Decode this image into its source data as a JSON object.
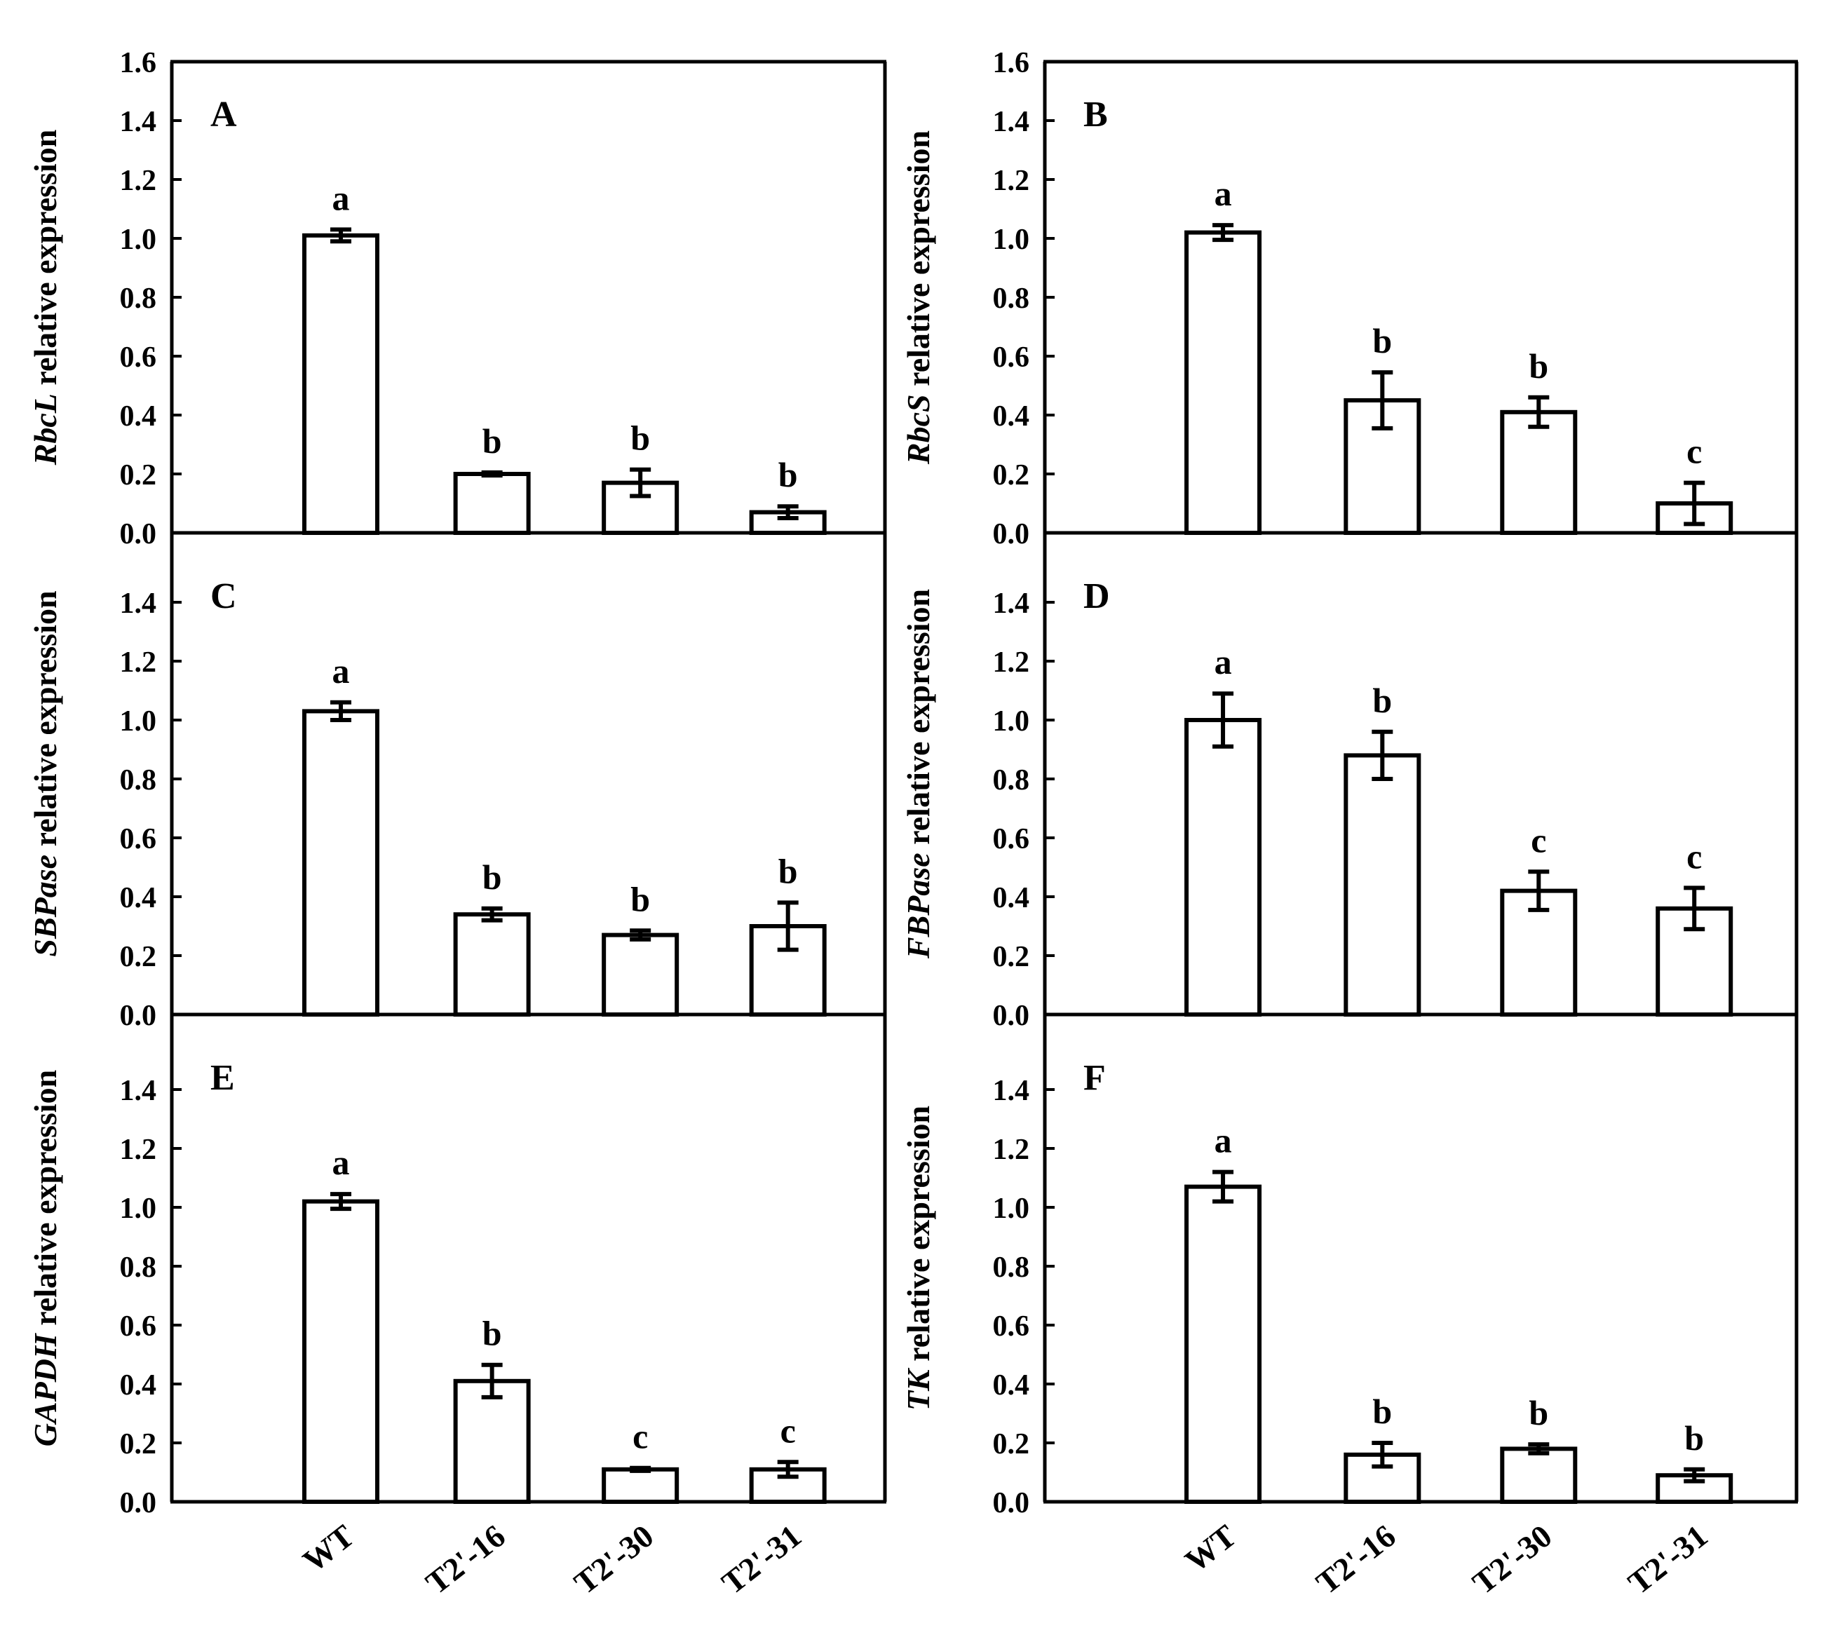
{
  "chart_data": [
    {
      "type": "bar",
      "panel": "A",
      "gene": "RbcL",
      "ylabel_suffix": " relative expression",
      "categories": [
        "WT",
        "T2'-16",
        "T2'-30",
        "T2'-31"
      ],
      "values": [
        1.01,
        0.2,
        0.17,
        0.07
      ],
      "errors": [
        0.02,
        0.005,
        0.045,
        0.02
      ],
      "letters": [
        "a",
        "b",
        "b",
        "b"
      ],
      "ylim": [
        0,
        1.6
      ],
      "yticks": [
        "0.0",
        "0.2",
        "0.4",
        "0.6",
        "0.8",
        "1.0",
        "1.2",
        "1.4",
        "1.6"
      ]
    },
    {
      "type": "bar",
      "panel": "B",
      "gene": "RbcS",
      "ylabel_suffix": " relative expression",
      "categories": [
        "WT",
        "T2'-16",
        "T2'-30",
        "T2'-31"
      ],
      "values": [
        1.02,
        0.45,
        0.41,
        0.1
      ],
      "errors": [
        0.025,
        0.095,
        0.05,
        0.07
      ],
      "letters": [
        "a",
        "b",
        "b",
        "c"
      ],
      "ylim": [
        0,
        1.6
      ],
      "yticks": [
        "0.0",
        "0.2",
        "0.4",
        "0.6",
        "0.8",
        "1.0",
        "1.2",
        "1.4",
        "1.6"
      ]
    },
    {
      "type": "bar",
      "panel": "C",
      "gene": "SBPase",
      "ylabel_suffix": " relative expression",
      "categories": [
        "WT",
        "T2'-16",
        "T2'-30",
        "T2'-31"
      ],
      "values": [
        1.03,
        0.34,
        0.27,
        0.3
      ],
      "errors": [
        0.03,
        0.02,
        0.015,
        0.08
      ],
      "letters": [
        "a",
        "b",
        "b",
        "b"
      ],
      "ylim": [
        0,
        1.6
      ],
      "yticks": [
        "0.0",
        "0.2",
        "0.4",
        "0.6",
        "0.8",
        "1.0",
        "1.2",
        "1.4"
      ]
    },
    {
      "type": "bar",
      "panel": "D",
      "gene": "FBPase",
      "ylabel_suffix": " relative expression",
      "categories": [
        "WT",
        "T2'-16",
        "T2'-30",
        "T2'-31"
      ],
      "values": [
        1.0,
        0.88,
        0.42,
        0.36
      ],
      "errors": [
        0.09,
        0.08,
        0.065,
        0.07
      ],
      "letters": [
        "a",
        "b",
        "c",
        "c"
      ],
      "ylim": [
        0,
        1.6
      ],
      "yticks": [
        "0.0",
        "0.2",
        "0.4",
        "0.6",
        "0.8",
        "1.0",
        "1.2",
        "1.4"
      ]
    },
    {
      "type": "bar",
      "panel": "E",
      "gene": "GAPDH",
      "ylabel_suffix": " relative expression",
      "categories": [
        "WT",
        "T2'-16",
        "T2'-30",
        "T2'-31"
      ],
      "values": [
        1.02,
        0.41,
        0.11,
        0.11
      ],
      "errors": [
        0.025,
        0.055,
        0.005,
        0.025
      ],
      "letters": [
        "a",
        "b",
        "c",
        "c"
      ],
      "ylim": [
        0,
        1.6
      ],
      "yticks": [
        "0.0",
        "0.2",
        "0.4",
        "0.6",
        "0.8",
        "1.0",
        "1.2",
        "1.4"
      ]
    },
    {
      "type": "bar",
      "panel": "F",
      "gene": "TK",
      "ylabel_suffix": " relative expression",
      "categories": [
        "WT",
        "T2'-16",
        "T2'-30",
        "T2'-31"
      ],
      "values": [
        1.07,
        0.16,
        0.18,
        0.09
      ],
      "errors": [
        0.05,
        0.04,
        0.015,
        0.02
      ],
      "letters": [
        "a",
        "b",
        "b",
        "b"
      ],
      "ylim": [
        0,
        1.6
      ],
      "yticks": [
        "0.0",
        "0.2",
        "0.4",
        "0.6",
        "0.8",
        "1.0",
        "1.2",
        "1.4"
      ]
    }
  ]
}
